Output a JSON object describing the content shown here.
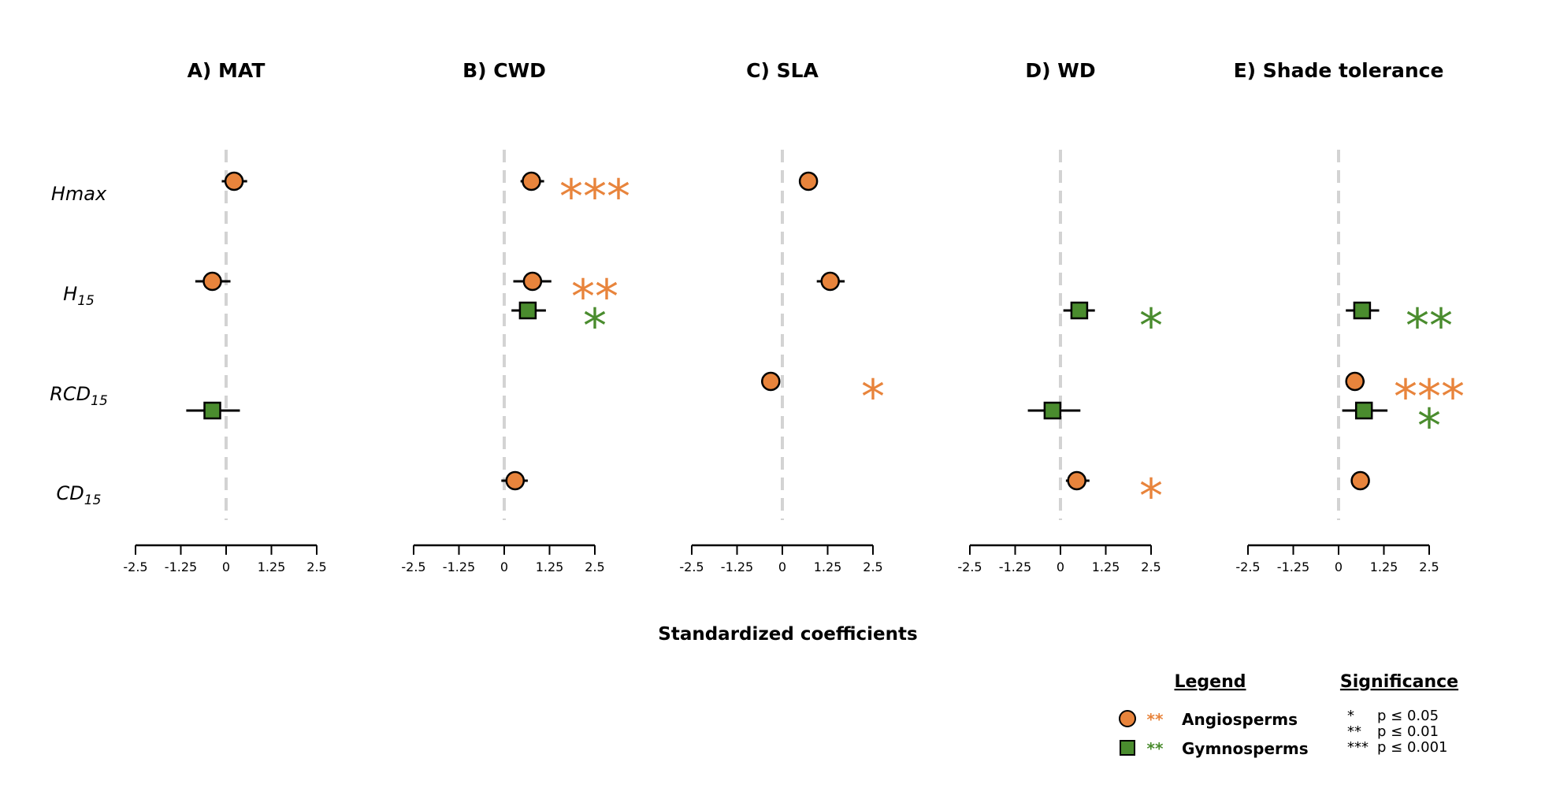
{
  "chart_data": {
    "type": "scatter",
    "xlabel": "Standardized coefficients",
    "xlim": [
      -2.5,
      2.5
    ],
    "xticks": [
      -2.5,
      -1.25,
      0,
      1.25,
      2.5
    ],
    "xtick_labels": [
      "-2.5",
      "-1.25",
      "0",
      "1.25",
      "2.5"
    ],
    "rows": [
      "Hmax",
      "H15",
      "RCD15",
      "CD15"
    ],
    "row_labels": [
      {
        "main": "Hmax",
        "sub": ""
      },
      {
        "main": "H",
        "sub": "15"
      },
      {
        "main": "RCD",
        "sub": "15"
      },
      {
        "main": "CD",
        "sub": "15"
      }
    ],
    "colors": {
      "angiosperms": "#E8843C",
      "gymnosperms": "#4A8C2E",
      "reference_line": "#D3D3D3"
    },
    "panels": [
      {
        "title": "A) MAT",
        "points": [
          {
            "row": "Hmax",
            "group": "angiosperms",
            "value": 0.22,
            "low": -0.12,
            "high": 0.58,
            "sig": ""
          },
          {
            "row": "H15",
            "group": "angiosperms",
            "value": -0.38,
            "low": -0.85,
            "high": 0.12,
            "sig": ""
          },
          {
            "row": "RCD15",
            "group": "gymnosperms",
            "value": -0.38,
            "low": -1.1,
            "high": 0.38,
            "sig": ""
          }
        ]
      },
      {
        "title": "B) CWD",
        "points": [
          {
            "row": "Hmax",
            "group": "angiosperms",
            "value": 0.75,
            "low": 0.45,
            "high": 1.1,
            "sig": "***"
          },
          {
            "row": "H15",
            "group": "angiosperms",
            "value": 0.78,
            "low": 0.25,
            "high": 1.3,
            "sig": "**"
          },
          {
            "row": "H15",
            "group": "gymnosperms",
            "value": 0.65,
            "low": 0.2,
            "high": 1.15,
            "sig": "*"
          },
          {
            "row": "CD15",
            "group": "angiosperms",
            "value": 0.3,
            "low": -0.08,
            "high": 0.65,
            "sig": ""
          }
        ]
      },
      {
        "title": "C) SLA",
        "points": [
          {
            "row": "Hmax",
            "group": "angiosperms",
            "value": 0.72,
            "low": 0.5,
            "high": 0.95,
            "sig": ""
          },
          {
            "row": "H15",
            "group": "angiosperms",
            "value": 1.32,
            "low": 0.95,
            "high": 1.72,
            "sig": ""
          },
          {
            "row": "RCD15",
            "group": "angiosperms",
            "value": -0.32,
            "low": -0.58,
            "high": -0.08,
            "sig": "*"
          }
        ]
      },
      {
        "title": "D) WD",
        "points": [
          {
            "row": "H15",
            "group": "gymnosperms",
            "value": 0.52,
            "low": 0.08,
            "high": 0.95,
            "sig": "*"
          },
          {
            "row": "RCD15",
            "group": "gymnosperms",
            "value": -0.22,
            "low": -0.9,
            "high": 0.55,
            "sig": ""
          },
          {
            "row": "CD15",
            "group": "angiosperms",
            "value": 0.45,
            "low": 0.15,
            "high": 0.8,
            "sig": "*"
          }
        ]
      },
      {
        "title": "E) Shade tolerance",
        "points": [
          {
            "row": "H15",
            "group": "gymnosperms",
            "value": 0.65,
            "low": 0.2,
            "high": 1.12,
            "sig": "**"
          },
          {
            "row": "RCD15",
            "group": "angiosperms",
            "value": 0.45,
            "low": 0.2,
            "high": 0.72,
            "sig": "***"
          },
          {
            "row": "RCD15",
            "group": "gymnosperms",
            "value": 0.7,
            "low": 0.1,
            "high": 1.35,
            "sig": "*"
          },
          {
            "row": "CD15",
            "group": "angiosperms",
            "value": 0.6,
            "low": 0.35,
            "high": 0.85,
            "sig": ""
          }
        ]
      }
    ]
  },
  "legend": {
    "title": "Legend",
    "items": [
      {
        "label": "Angiosperms",
        "marker": "circle",
        "stars": "**",
        "group": "angiosperms"
      },
      {
        "label": "Gymnosperms",
        "marker": "square",
        "stars": "**",
        "group": "gymnosperms"
      }
    ]
  },
  "significance": {
    "title": "Significance",
    "items": [
      {
        "stars": "*",
        "label": "p ≤ 0.05"
      },
      {
        "stars": "**",
        "label": "p ≤ 0.01"
      },
      {
        "stars": "***",
        "label": "p ≤ 0.001"
      }
    ]
  }
}
